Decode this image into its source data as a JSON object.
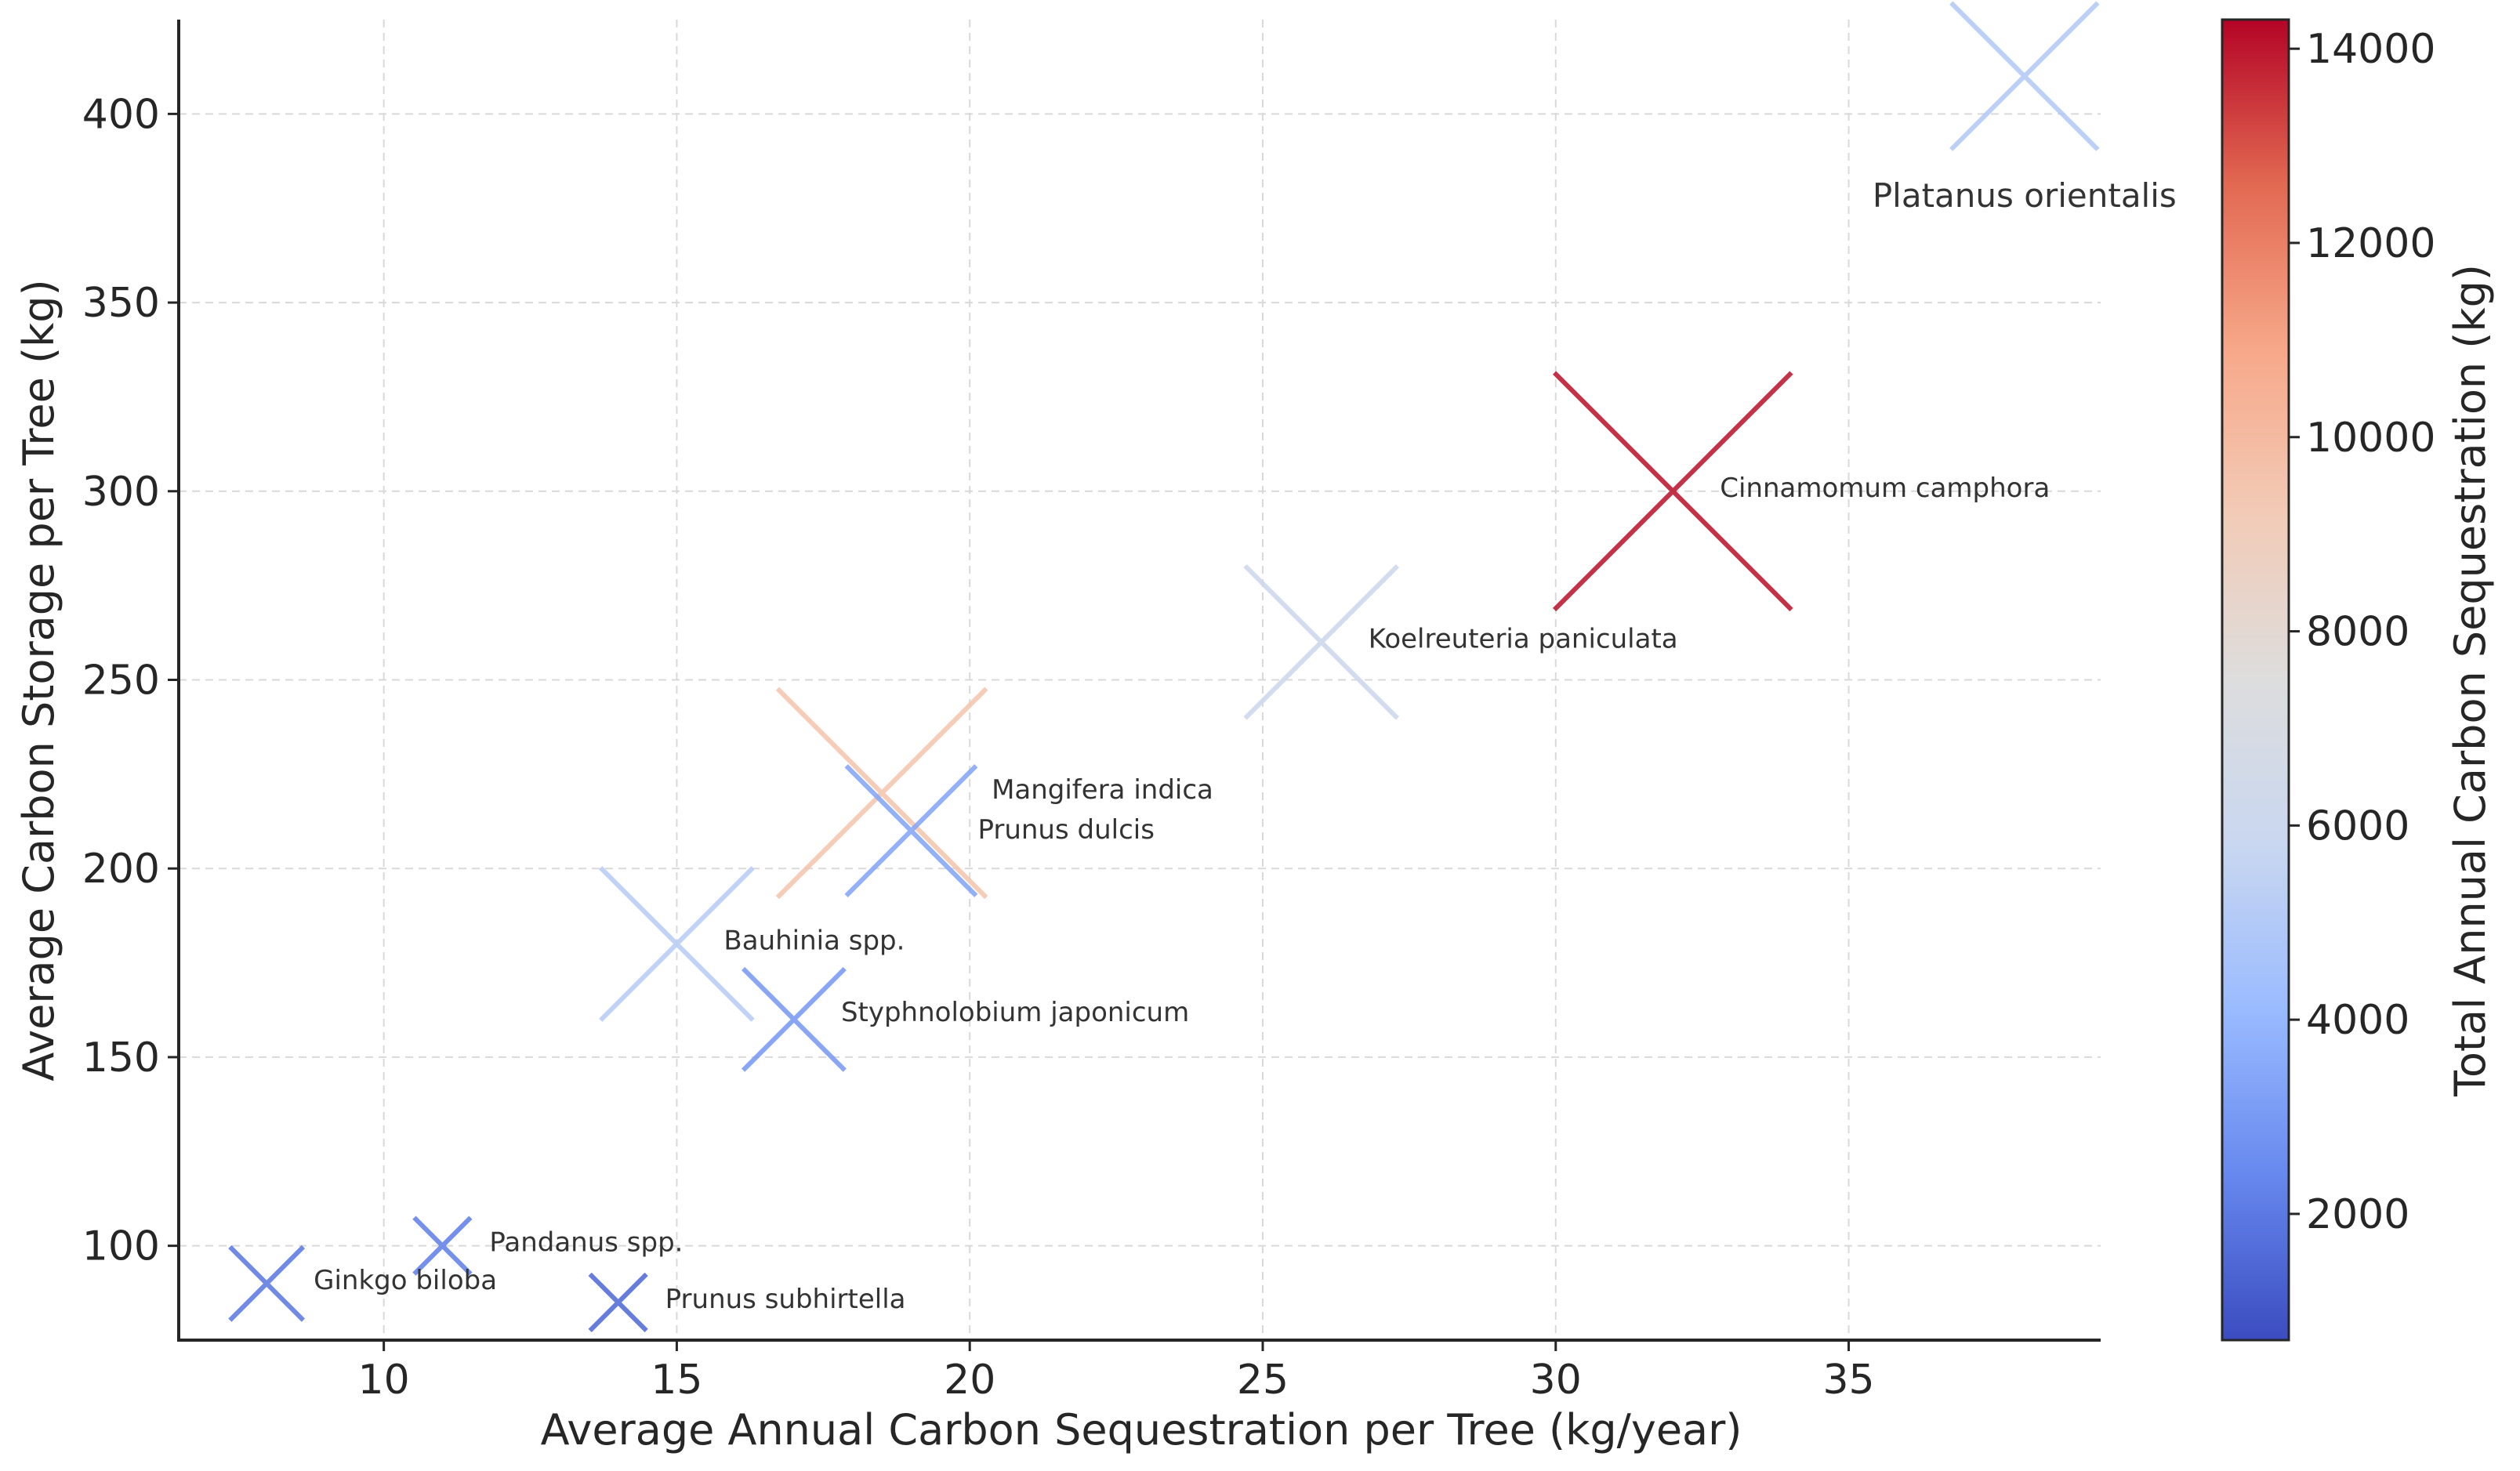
{
  "chart_data": {
    "type": "scatter",
    "marker": "x",
    "xlabel": "Average Annual Carbon Sequestration per Tree (kg/year)",
    "ylabel": "Average Carbon Storage per Tree (kg)",
    "xlim": [
      6.5,
      39.3
    ],
    "ylim": [
      75,
      425
    ],
    "xticks": [
      10,
      15,
      20,
      25,
      30,
      35
    ],
    "yticks": [
      100,
      150,
      200,
      250,
      300,
      350,
      400
    ],
    "grid": true,
    "colorbar": {
      "label": "Total Annual Carbon Sequestration (kg)",
      "range": [
        700,
        14300
      ],
      "ticks": [
        2000,
        4000,
        6000,
        8000,
        10000,
        12000,
        14000
      ],
      "colormap": "coolwarm",
      "colors": [
        "#3b4cc0",
        "#6788ee",
        "#9abbff",
        "#c9d7f0",
        "#dddddd",
        "#f2cbb7",
        "#f7a889",
        "#e26952",
        "#b40426"
      ]
    },
    "points": [
      {
        "name": "Platanus orientalis",
        "x": 38,
        "y": 410,
        "total": 5000,
        "size": 26
      },
      {
        "name": "Cinnamomum camphora",
        "x": 32,
        "y": 300,
        "total": 14000,
        "size": 42
      },
      {
        "name": "Koelreuteria paniculata",
        "x": 26,
        "y": 260,
        "total": 6200,
        "size": 27
      },
      {
        "name": "Mangifera indica",
        "x": 18.5,
        "y": 220,
        "total": 9500,
        "size": 37
      },
      {
        "name": "Prunus dulcis",
        "x": 19,
        "y": 210,
        "total": 3400,
        "size": 23
      },
      {
        "name": "Bauhinia spp.",
        "x": 15,
        "y": 180,
        "total": 5200,
        "size": 27
      },
      {
        "name": "Styphnolobium japonicum",
        "x": 17,
        "y": 160,
        "total": 3000,
        "size": 18
      },
      {
        "name": "Pandanus spp.",
        "x": 11,
        "y": 100,
        "total": 2200,
        "size": 10
      },
      {
        "name": "Ginkgo biloba",
        "x": 8,
        "y": 90,
        "total": 2000,
        "size": 13
      },
      {
        "name": "Prunus subhirtella",
        "x": 14,
        "y": 85,
        "total": 1600,
        "size": 10
      }
    ]
  }
}
